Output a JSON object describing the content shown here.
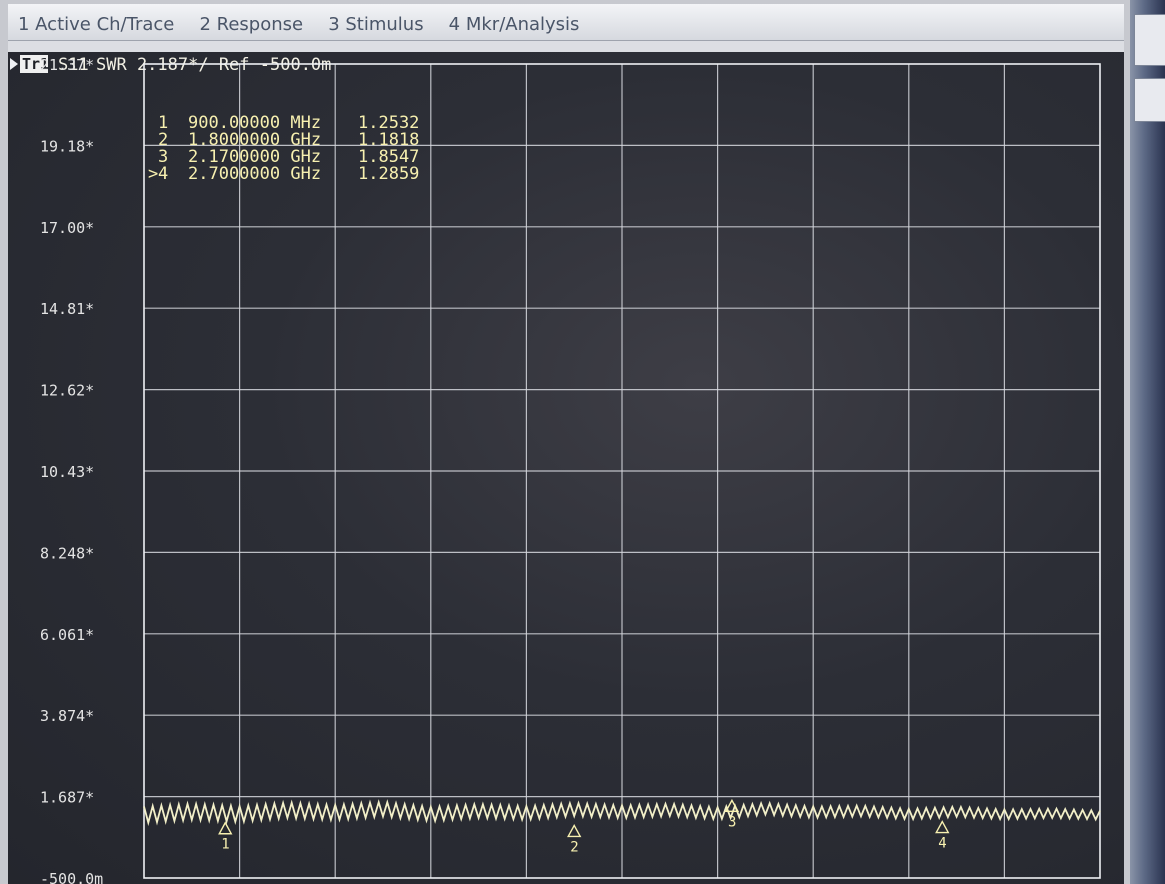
{
  "menu": {
    "items": [
      {
        "label": "1 Active Ch/Trace"
      },
      {
        "label": "2 Response"
      },
      {
        "label": "3 Stimulus"
      },
      {
        "label": "4 Mkr/Analysis"
      }
    ]
  },
  "trace_header": {
    "badge": "Tr1",
    "parameter": "S11",
    "format": "SWR 2.187*/ Ref -500.0m"
  },
  "markers": [
    {
      "id": "1",
      "active": false,
      "frequency": "900.00000 MHz",
      "value": "1.2532"
    },
    {
      "id": "2",
      "active": false,
      "frequency": "1.8000000 GHz",
      "value": "1.1818"
    },
    {
      "id": "3",
      "active": false,
      "frequency": "2.1700000 GHz",
      "value": "1.8547"
    },
    {
      "id": "4",
      "active": true,
      "frequency": "2.7000000 GHz",
      "value": "1.2859"
    }
  ],
  "chart_data": {
    "type": "line",
    "title": "",
    "xlabel": "",
    "ylabel": "",
    "ylim": [
      -0.5,
      21.37
    ],
    "y_ticks": [
      "21.37*",
      "19.18*",
      "17.00*",
      "14.81*",
      "12.62*",
      "10.43*",
      "8.248*",
      "6.061*",
      "3.874*",
      "1.687*",
      "-500.0m"
    ],
    "grid": true,
    "trace_color": "#f2efc8",
    "series": [
      {
        "name": "",
        "points": [
          [
            0.0,
            1.2
          ],
          [
            0.5,
            1.28
          ],
          [
            1.0,
            1.22
          ],
          [
            1.5,
            1.32
          ],
          [
            2.0,
            1.26
          ],
          [
            2.5,
            1.35
          ],
          [
            3.0,
            1.22
          ],
          [
            3.5,
            1.3
          ],
          [
            4.0,
            1.25
          ],
          [
            4.5,
            1.34
          ],
          [
            5.0,
            1.28
          ],
          [
            5.5,
            1.33
          ],
          [
            6.0,
            1.24
          ],
          [
            6.5,
            1.36
          ],
          [
            7.0,
            1.27
          ],
          [
            7.5,
            1.3
          ],
          [
            8.0,
            1.22
          ],
          [
            8.5,
            1.28
          ],
          [
            9.0,
            1.21
          ],
          [
            9.5,
            1.24
          ],
          [
            10.0,
            1.19
          ]
        ]
      }
    ],
    "marker_positions": [
      {
        "id": "1",
        "x": 0.85,
        "y": 1.2532
      },
      {
        "id": "2",
        "x": 4.5,
        "y": 1.1818
      },
      {
        "id": "3",
        "x": 6.15,
        "y": 1.8547
      },
      {
        "id": "4",
        "x": 8.35,
        "y": 1.2859
      }
    ]
  }
}
